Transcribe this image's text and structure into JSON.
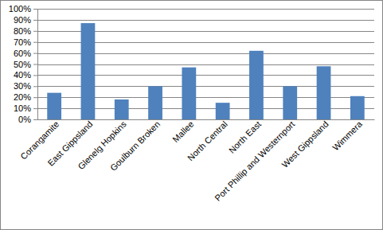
{
  "chart_data": {
    "type": "bar",
    "categories": [
      "Corangamite",
      "East Gippsland",
      "Glenelg Hopkins",
      "Goulburn Broken",
      "Mallee",
      "North Central",
      "North East",
      "Port Phillip and Westernport",
      "West Gippsland",
      "Wimmera"
    ],
    "values": [
      24,
      87,
      18,
      30,
      47,
      15,
      62,
      30,
      48,
      21
    ],
    "color": "#4f81bd",
    "ylim": [
      0,
      100
    ],
    "yticks": [
      {
        "value": 0,
        "label": "0%"
      },
      {
        "value": 10,
        "label": "10%"
      },
      {
        "value": 20,
        "label": "20%"
      },
      {
        "value": 30,
        "label": "30%"
      },
      {
        "value": 40,
        "label": "40%"
      },
      {
        "value": 50,
        "label": "50%"
      },
      {
        "value": 60,
        "label": "60%"
      },
      {
        "value": 70,
        "label": "70%"
      },
      {
        "value": 80,
        "label": "80%"
      },
      {
        "value": 90,
        "label": "90%"
      },
      {
        "value": 100,
        "label": "100%"
      }
    ],
    "grid": true
  }
}
